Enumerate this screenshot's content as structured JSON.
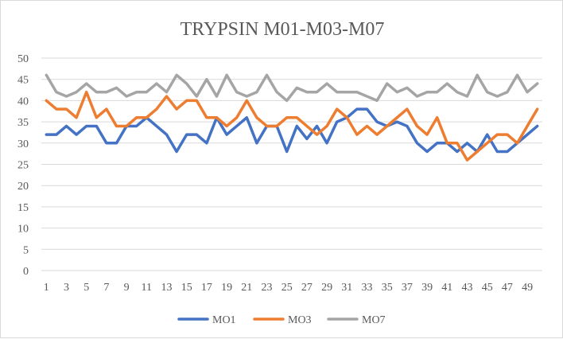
{
  "chart_data": {
    "type": "line",
    "title": "TRYPSIN M01-M03-M07",
    "xlabel": "",
    "ylabel": "",
    "ylim": [
      0,
      50
    ],
    "y_ticks": [
      0,
      5,
      10,
      15,
      20,
      25,
      30,
      35,
      40,
      45,
      50
    ],
    "x": [
      1,
      2,
      3,
      4,
      5,
      6,
      7,
      8,
      9,
      10,
      11,
      12,
      13,
      14,
      15,
      16,
      17,
      18,
      19,
      20,
      21,
      22,
      23,
      24,
      25,
      26,
      27,
      28,
      29,
      30,
      31,
      32,
      33,
      34,
      35,
      36,
      37,
      38,
      39,
      40,
      41,
      42,
      43,
      44,
      45,
      46,
      47,
      48,
      49,
      50
    ],
    "x_tick_labels": [
      "1",
      "3",
      "5",
      "7",
      "9",
      "11",
      "13",
      "15",
      "17",
      "19",
      "21",
      "23",
      "25",
      "27",
      "29",
      "31",
      "33",
      "35",
      "37",
      "39",
      "41",
      "43",
      "45",
      "47",
      "49"
    ],
    "x_tick_values": [
      1,
      3,
      5,
      7,
      9,
      11,
      13,
      15,
      17,
      19,
      21,
      23,
      25,
      27,
      29,
      31,
      33,
      35,
      37,
      39,
      41,
      43,
      45,
      47,
      49
    ],
    "grid": true,
    "legend_position": "bottom",
    "series": [
      {
        "name": "MO1",
        "color": "#4472c4",
        "values": [
          32,
          32,
          34,
          32,
          34,
          34,
          30,
          30,
          34,
          34,
          36,
          34,
          32,
          28,
          32,
          32,
          30,
          36,
          32,
          34,
          36,
          30,
          34,
          34,
          28,
          34,
          31,
          34,
          30,
          35,
          36,
          38,
          38,
          35,
          34,
          35,
          34,
          30,
          28,
          30,
          30,
          28,
          30,
          28,
          32,
          28,
          28,
          30,
          32,
          34
        ]
      },
      {
        "name": "MO3",
        "color": "#ed7d31",
        "values": [
          40,
          38,
          38,
          36,
          42,
          36,
          38,
          34,
          34,
          36,
          36,
          38,
          41,
          38,
          40,
          40,
          36,
          36,
          34,
          36,
          40,
          36,
          34,
          34,
          36,
          36,
          34,
          32,
          34,
          38,
          36,
          32,
          34,
          32,
          34,
          36,
          38,
          34,
          32,
          36,
          30,
          30,
          26,
          28,
          30,
          32,
          32,
          30,
          34,
          38
        ]
      },
      {
        "name": "MO7",
        "color": "#a5a5a5",
        "values": [
          46,
          42,
          41,
          42,
          44,
          42,
          42,
          43,
          41,
          42,
          42,
          44,
          42,
          46,
          44,
          41,
          45,
          41,
          46,
          42,
          41,
          42,
          46,
          42,
          40,
          43,
          42,
          42,
          44,
          42,
          42,
          42,
          41,
          40,
          44,
          42,
          43,
          41,
          42,
          42,
          44,
          42,
          41,
          46,
          42,
          41,
          42,
          46,
          42,
          44
        ]
      }
    ]
  }
}
